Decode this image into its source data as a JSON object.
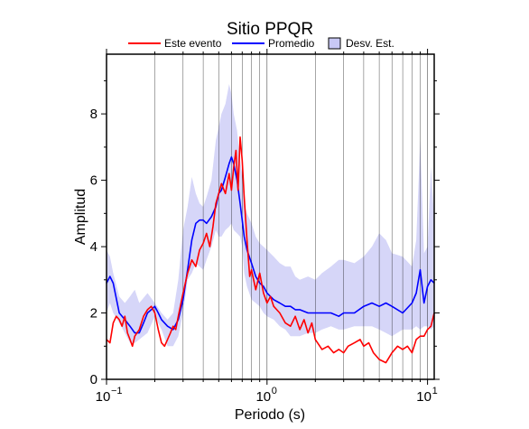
{
  "chart_data": {
    "type": "line",
    "title": "Sitio PPQR",
    "xlabel": "Periodo (s)",
    "ylabel": "Amplitud",
    "x_scale": "log",
    "xlim": [
      0.1,
      11
    ],
    "ylim": [
      0,
      9.8
    ],
    "grid": true,
    "legend_position": "top-center",
    "x_ticks": [
      {
        "value": 0.1,
        "base": "10",
        "exp": "−1"
      },
      {
        "value": 1,
        "base": "10",
        "exp": "0"
      },
      {
        "value": 10,
        "base": "10",
        "exp": "1"
      }
    ],
    "y_ticks": [
      {
        "value": 0,
        "label": "0"
      },
      {
        "value": 2,
        "label": "2"
      },
      {
        "value": 4,
        "label": "4"
      },
      {
        "value": 6,
        "label": "6"
      },
      {
        "value": 8,
        "label": "8"
      }
    ],
    "legend": [
      {
        "label": "Este evento",
        "kind": "line",
        "color": "#ff0000"
      },
      {
        "label": "Promedio",
        "kind": "line",
        "color": "#0000ff"
      },
      {
        "label": "Desv. Est.",
        "kind": "band",
        "color": "#c8c8f5"
      }
    ],
    "band": {
      "name": "Desv. Est.",
      "color": "#d6d6f8",
      "x": [
        0.1,
        0.105,
        0.11,
        0.12,
        0.13,
        0.14,
        0.15,
        0.16,
        0.18,
        0.2,
        0.22,
        0.24,
        0.26,
        0.28,
        0.3,
        0.32,
        0.34,
        0.36,
        0.38,
        0.4,
        0.42,
        0.45,
        0.48,
        0.5,
        0.52,
        0.55,
        0.58,
        0.6,
        0.62,
        0.65,
        0.68,
        0.7,
        0.72,
        0.75,
        0.8,
        0.85,
        0.9,
        0.95,
        1.0,
        1.1,
        1.2,
        1.3,
        1.4,
        1.5,
        1.6,
        1.8,
        2.0,
        2.2,
        2.5,
        2.8,
        3.0,
        3.5,
        4.0,
        4.5,
        5.0,
        5.5,
        6.0,
        7.0,
        8.0,
        8.5,
        9.0,
        9.5,
        10.0,
        10.5,
        11.0
      ],
      "upper": [
        3.9,
        3.7,
        3.2,
        2.5,
        2.3,
        2.5,
        2.7,
        2.3,
        2.6,
        2.3,
        2.0,
        1.8,
        2.0,
        3.0,
        4.5,
        5.2,
        6.1,
        5.6,
        5.3,
        5.2,
        5.5,
        6.0,
        7.2,
        7.6,
        8.0,
        8.3,
        8.9,
        8.6,
        8.0,
        7.5,
        6.6,
        6.2,
        5.3,
        5.0,
        4.7,
        4.3,
        4.1,
        4.0,
        3.9,
        3.7,
        3.5,
        3.4,
        3.4,
        3.1,
        3.0,
        3.1,
        3.0,
        3.2,
        3.4,
        3.6,
        3.6,
        3.5,
        3.7,
        4.0,
        4.4,
        4.2,
        3.8,
        3.7,
        3.4,
        4.2,
        7.2,
        3.8,
        4.0,
        6.4,
        4.8
      ],
      "lower": [
        2.0,
        2.3,
        2.0,
        1.7,
        1.4,
        1.1,
        1.1,
        1.2,
        1.4,
        1.9,
        1.5,
        1.0,
        1.0,
        1.3,
        2.0,
        3.0,
        3.2,
        3.5,
        3.4,
        3.3,
        3.6,
        4.0,
        4.5,
        4.3,
        4.3,
        4.5,
        4.6,
        4.7,
        4.5,
        4.4,
        4.3,
        4.0,
        3.2,
        2.8,
        2.4,
        2.3,
        2.2,
        2.0,
        1.9,
        1.8,
        1.6,
        1.5,
        1.3,
        1.3,
        1.3,
        1.4,
        1.4,
        1.5,
        1.6,
        1.5,
        1.5,
        1.6,
        1.6,
        1.6,
        1.5,
        1.4,
        1.3,
        1.5,
        1.5,
        1.6,
        1.5,
        1.6,
        1.6,
        1.5,
        1.6
      ]
    },
    "series": [
      {
        "name": "Promedio",
        "color": "#0000ff",
        "x": [
          0.1,
          0.105,
          0.11,
          0.12,
          0.13,
          0.14,
          0.15,
          0.16,
          0.17,
          0.18,
          0.19,
          0.2,
          0.21,
          0.22,
          0.24,
          0.26,
          0.28,
          0.3,
          0.32,
          0.34,
          0.36,
          0.38,
          0.4,
          0.42,
          0.45,
          0.48,
          0.5,
          0.52,
          0.55,
          0.58,
          0.6,
          0.62,
          0.65,
          0.68,
          0.7,
          0.72,
          0.75,
          0.8,
          0.85,
          0.9,
          0.95,
          1.0,
          1.1,
          1.2,
          1.3,
          1.4,
          1.5,
          1.6,
          1.8,
          2.0,
          2.2,
          2.5,
          2.8,
          3.0,
          3.5,
          4.0,
          4.5,
          5.0,
          5.5,
          6.0,
          7.0,
          8.0,
          8.5,
          9.0,
          9.5,
          10.0,
          10.5,
          11.0
        ],
        "y": [
          2.9,
          3.1,
          2.9,
          2.0,
          1.8,
          1.6,
          1.4,
          1.4,
          1.7,
          2.0,
          2.1,
          2.2,
          2.0,
          1.8,
          1.6,
          1.5,
          1.8,
          2.4,
          3.3,
          4.2,
          4.7,
          4.8,
          4.8,
          4.7,
          4.9,
          5.2,
          5.6,
          5.7,
          6.1,
          6.5,
          6.7,
          6.5,
          6.0,
          5.3,
          4.8,
          4.3,
          3.9,
          3.5,
          3.1,
          2.9,
          2.8,
          2.6,
          2.4,
          2.3,
          2.2,
          2.2,
          2.1,
          2.1,
          2.0,
          2.0,
          2.0,
          2.0,
          1.9,
          2.0,
          2.0,
          2.2,
          2.3,
          2.2,
          2.3,
          2.2,
          2.0,
          2.3,
          2.6,
          3.3,
          2.3,
          2.8,
          3.0,
          2.9
        ]
      },
      {
        "name": "Este evento",
        "color": "#ff0000",
        "x": [
          0.1,
          0.105,
          0.11,
          0.115,
          0.12,
          0.125,
          0.13,
          0.135,
          0.14,
          0.145,
          0.15,
          0.16,
          0.17,
          0.18,
          0.19,
          0.2,
          0.21,
          0.22,
          0.23,
          0.24,
          0.25,
          0.26,
          0.27,
          0.28,
          0.3,
          0.32,
          0.34,
          0.36,
          0.38,
          0.4,
          0.42,
          0.44,
          0.46,
          0.48,
          0.5,
          0.52,
          0.55,
          0.58,
          0.6,
          0.62,
          0.64,
          0.66,
          0.68,
          0.7,
          0.72,
          0.75,
          0.78,
          0.8,
          0.85,
          0.9,
          0.95,
          1.0,
          1.05,
          1.1,
          1.2,
          1.3,
          1.4,
          1.5,
          1.6,
          1.7,
          1.8,
          1.9,
          2.0,
          2.2,
          2.4,
          2.6,
          2.8,
          3.0,
          3.2,
          3.5,
          3.8,
          4.0,
          4.3,
          4.6,
          5.0,
          5.5,
          6.0,
          6.5,
          7.0,
          7.5,
          8.0,
          8.5,
          9.0,
          9.5,
          10.0,
          10.5,
          11.0
        ],
        "y": [
          1.2,
          1.1,
          1.7,
          1.9,
          1.8,
          1.6,
          1.9,
          1.4,
          1.2,
          1.0,
          1.3,
          1.5,
          1.9,
          2.1,
          2.2,
          2.0,
          1.5,
          1.1,
          1.0,
          1.2,
          1.4,
          1.6,
          1.5,
          1.9,
          2.6,
          3.2,
          3.6,
          3.4,
          3.9,
          4.1,
          4.4,
          4.0,
          4.6,
          5.3,
          5.6,
          5.9,
          5.6,
          6.2,
          5.7,
          6.4,
          6.9,
          5.7,
          7.3,
          6.6,
          5.5,
          4.2,
          3.1,
          3.3,
          2.7,
          3.2,
          2.6,
          2.3,
          2.5,
          2.2,
          2.0,
          1.7,
          1.6,
          1.9,
          1.5,
          1.8,
          1.4,
          1.7,
          1.2,
          0.9,
          1.0,
          0.8,
          0.9,
          0.8,
          1.0,
          1.1,
          1.2,
          1.0,
          1.1,
          0.8,
          0.6,
          0.5,
          0.8,
          1.0,
          0.9,
          1.0,
          0.8,
          1.2,
          1.3,
          1.3,
          1.5,
          1.6,
          2.0
        ]
      }
    ]
  }
}
